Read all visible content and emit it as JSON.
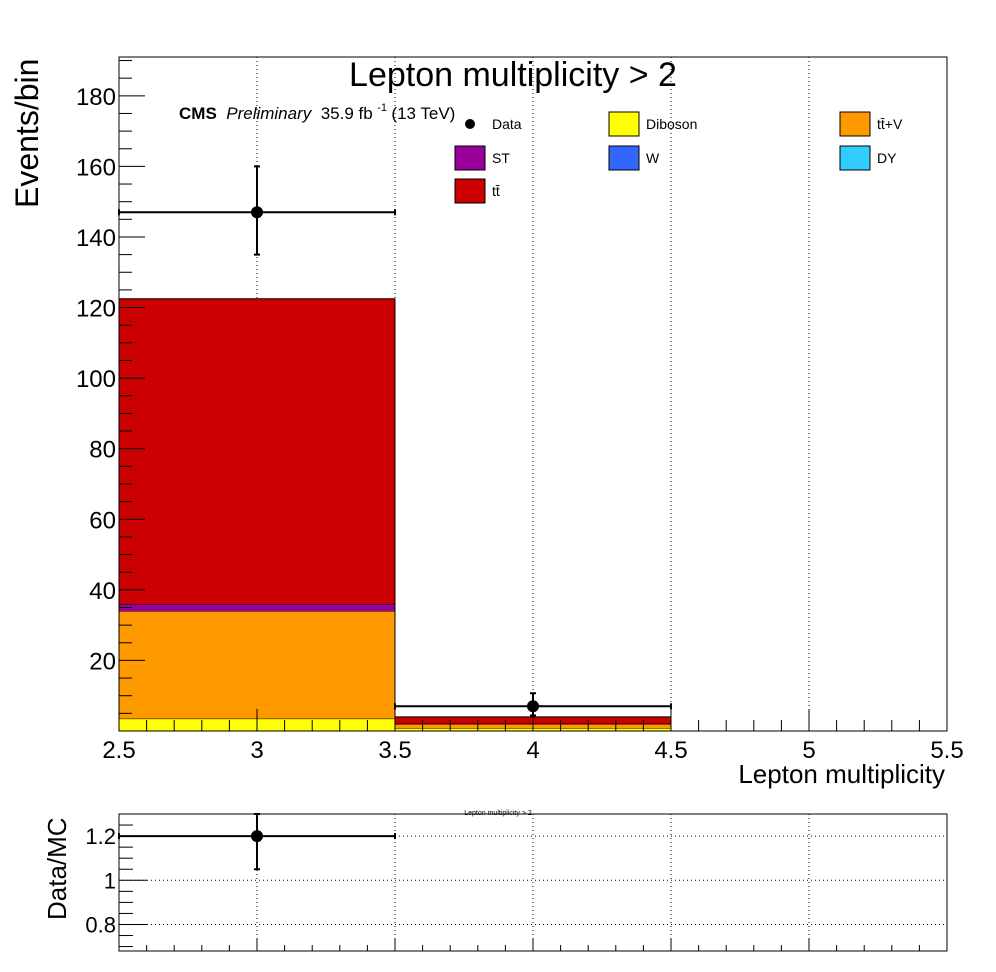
{
  "chart_data": {
    "main": {
      "type": "bar",
      "stacked": true,
      "title": "Lepton multiplicity > 2",
      "xlabel": "Lepton multiplicity",
      "ylabel": "Events/bin",
      "xlim": [
        2.5,
        5.5
      ],
      "ylim": [
        0,
        191
      ],
      "xticks": [
        2.5,
        3,
        3.5,
        4,
        4.5,
        5,
        5.5
      ],
      "xtick_labels": [
        "2.5",
        "3",
        "3.5",
        "4",
        "4.5",
        "5",
        "5.5"
      ],
      "yticks": [
        20,
        40,
        60,
        80,
        100,
        120,
        140,
        160,
        180
      ],
      "ytick_labels": [
        "20",
        "40",
        "60",
        "80",
        "100",
        "120",
        "140",
        "160",
        "180"
      ],
      "grid": true,
      "legend_position": "top",
      "bin_edges": [
        2.5,
        3.5,
        4.5,
        5.5
      ],
      "series": [
        {
          "name": "Diboson",
          "color": "#ffff00",
          "values": [
            3.5,
            0.8,
            0
          ]
        },
        {
          "name": "tt̄+V",
          "color": "#ff9900",
          "values": [
            30.5,
            1.2,
            0
          ]
        },
        {
          "name": "DY",
          "color": "#33ccff",
          "values": [
            0,
            0,
            0
          ]
        },
        {
          "name": "W",
          "color": "#3366ff",
          "values": [
            0,
            0,
            0
          ]
        },
        {
          "name": "ST",
          "color": "#990099",
          "values": [
            2.0,
            0.1,
            0
          ]
        },
        {
          "name": "tt̄",
          "color": "#cc0000",
          "values": [
            86.5,
            1.9,
            0
          ]
        }
      ],
      "data": {
        "name": "Data",
        "x": [
          3,
          4
        ],
        "y": [
          147,
          7
        ],
        "yerr_low": [
          12,
          2.6
        ],
        "yerr_high": [
          13,
          3.7
        ],
        "xerr": [
          0.5,
          0.5
        ]
      },
      "legend_order": [
        "Data",
        "Diboson",
        "tt̄+V",
        "ST",
        "W",
        "DY",
        "tt̄"
      ],
      "annotation": {
        "cms": "CMS",
        "preliminary": "Preliminary",
        "lumi": "35.9 fb",
        "lumi_exp": "-1",
        "energy": " (13 TeV)"
      }
    },
    "ratio": {
      "type": "scatter",
      "ylabel": "Data/MC",
      "small_title": "Lepton multiplicity > 2",
      "xlim": [
        2.5,
        5.5
      ],
      "ylim": [
        0.68,
        1.3
      ],
      "yticks": [
        0.8,
        1,
        1.2
      ],
      "ytick_labels": [
        "0.8",
        "1",
        "1.2"
      ],
      "grid": true,
      "x": [
        3
      ],
      "y": [
        1.2
      ],
      "yerr_low": [
        0.15
      ],
      "yerr_high": [
        0.1
      ],
      "xerr": [
        0.5
      ]
    }
  }
}
